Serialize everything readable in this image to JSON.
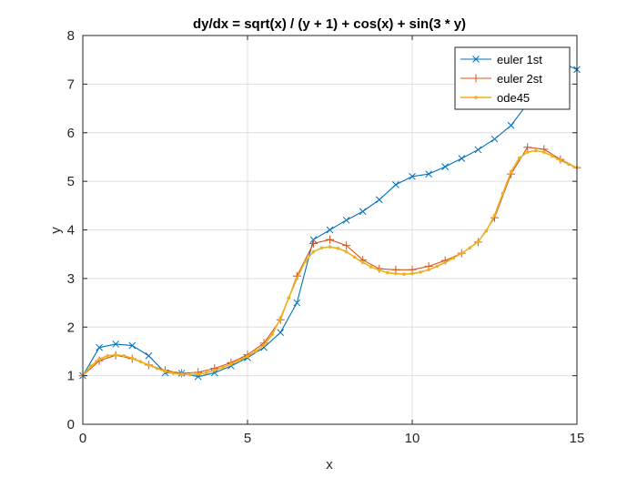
{
  "chart_data": {
    "type": "line",
    "title": "dy/dx = sqrt(x) / (y + 1) + cos(x) + sin(3 * y)",
    "xlabel": "x",
    "ylabel": "y",
    "xlim": [
      0,
      15
    ],
    "ylim": [
      0,
      8
    ],
    "xticks": [
      "0",
      "5",
      "10",
      "15"
    ],
    "xtick_values": [
      0,
      5,
      10,
      15
    ],
    "yticks": [
      "0",
      "1",
      "2",
      "3",
      "4",
      "5",
      "6",
      "7",
      "8"
    ],
    "ytick_values": [
      0,
      1,
      2,
      3,
      4,
      5,
      6,
      7,
      8
    ],
    "grid": true,
    "legend_position": "top-right",
    "series": [
      {
        "name": "euler 1st",
        "color": "#0072BD",
        "marker": "x",
        "x": [
          0,
          0.5,
          1,
          1.5,
          2,
          2.5,
          3,
          3.5,
          4,
          4.5,
          5,
          5.5,
          6,
          6.5,
          7,
          7.5,
          8,
          8.5,
          9,
          9.5,
          10,
          10.5,
          11,
          11.5,
          12,
          12.5,
          13,
          13.5,
          14,
          14.5,
          15
        ],
        "y": [
          1.0,
          1.58,
          1.65,
          1.62,
          1.41,
          1.06,
          1.05,
          0.98,
          1.06,
          1.2,
          1.37,
          1.58,
          1.89,
          2.5,
          3.8,
          4.0,
          4.2,
          4.38,
          4.62,
          4.93,
          5.1,
          5.15,
          5.3,
          5.47,
          5.65,
          5.87,
          6.15,
          6.6,
          7.1,
          7.45,
          7.3
        ]
      },
      {
        "name": "euler 2st",
        "color": "#D95319",
        "marker": "+",
        "x": [
          0,
          0.5,
          1,
          1.5,
          2,
          2.5,
          3,
          3.5,
          4,
          4.5,
          5,
          5.5,
          6,
          6.5,
          7,
          7.5,
          8,
          8.5,
          9,
          9.5,
          10,
          10.5,
          11,
          11.5,
          12,
          12.5,
          13,
          13.5,
          14,
          14.5,
          15
        ],
        "y": [
          1.0,
          1.31,
          1.42,
          1.35,
          1.22,
          1.11,
          1.05,
          1.07,
          1.15,
          1.27,
          1.43,
          1.67,
          2.15,
          3.05,
          3.72,
          3.8,
          3.68,
          3.38,
          3.2,
          3.18,
          3.18,
          3.25,
          3.37,
          3.52,
          3.75,
          4.25,
          5.15,
          5.7,
          5.66,
          5.45,
          5.28
        ]
      },
      {
        "name": "ode45",
        "color": "#EDB120",
        "marker": ".",
        "x": [
          0,
          0.25,
          0.5,
          0.75,
          1,
          1.25,
          1.5,
          1.75,
          2,
          2.25,
          2.5,
          2.75,
          3,
          3.25,
          3.5,
          3.75,
          4,
          4.25,
          4.5,
          4.75,
          5,
          5.25,
          5.5,
          5.75,
          6,
          6.25,
          6.5,
          6.75,
          7,
          7.25,
          7.5,
          7.75,
          8,
          8.25,
          8.5,
          8.75,
          9,
          9.25,
          9.5,
          9.75,
          10,
          10.25,
          10.5,
          10.75,
          11,
          11.25,
          11.5,
          11.75,
          12,
          12.25,
          12.5,
          12.75,
          13,
          13.25,
          13.5,
          13.75,
          14,
          14.25,
          14.5,
          14.75,
          15
        ],
        "y": [
          1.0,
          1.2,
          1.34,
          1.41,
          1.43,
          1.41,
          1.36,
          1.29,
          1.22,
          1.15,
          1.09,
          1.05,
          1.03,
          1.02,
          1.03,
          1.06,
          1.11,
          1.17,
          1.24,
          1.32,
          1.4,
          1.5,
          1.63,
          1.85,
          2.18,
          2.6,
          3.0,
          3.35,
          3.55,
          3.63,
          3.65,
          3.62,
          3.55,
          3.44,
          3.33,
          3.24,
          3.17,
          3.12,
          3.1,
          3.09,
          3.1,
          3.13,
          3.18,
          3.25,
          3.33,
          3.42,
          3.52,
          3.63,
          3.76,
          3.98,
          4.3,
          4.75,
          5.2,
          5.48,
          5.6,
          5.63,
          5.6,
          5.52,
          5.43,
          5.35,
          5.28
        ]
      }
    ]
  }
}
